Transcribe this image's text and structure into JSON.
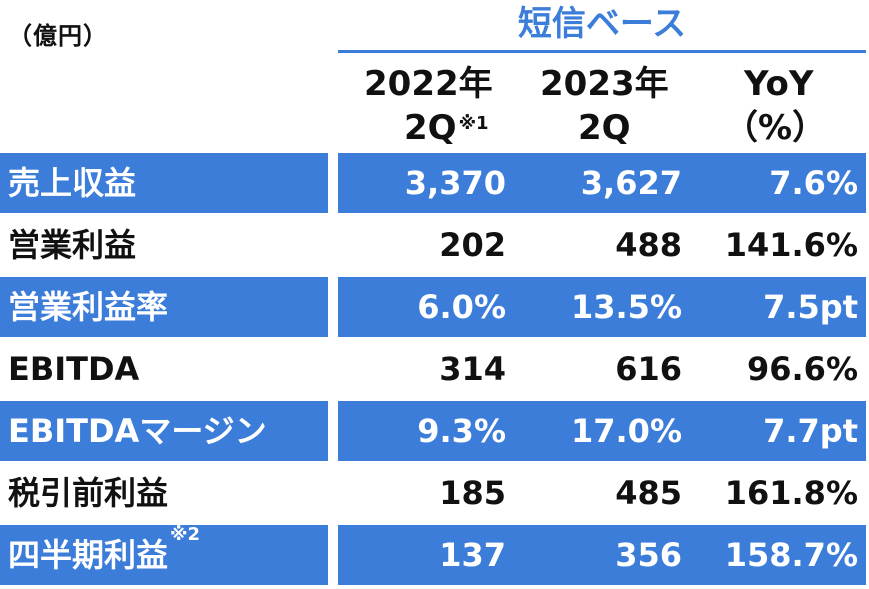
{
  "unit_label": "（億円）",
  "basis_label": "短信ベース",
  "headers": {
    "col1_line1": "2022年",
    "col1_line2": "2Q",
    "col1_note": "※1",
    "col2_line1": "2023年",
    "col2_line2": "2Q",
    "col3_line1": "YoY",
    "col3_line2": "（%）"
  },
  "colors": {
    "accent": "#3b7dd8",
    "text": "#111111",
    "on_accent": "#ffffff"
  },
  "rows": [
    {
      "label": "売上収益",
      "note": "",
      "v2022": "3,370",
      "v2023": "3,627",
      "yoy": "7.6%"
    },
    {
      "label": "営業利益",
      "note": "",
      "v2022": "202",
      "v2023": "488",
      "yoy": "141.6%"
    },
    {
      "label": "営業利益率",
      "note": "",
      "v2022": "6.0%",
      "v2023": "13.5%",
      "yoy": "7.5pt"
    },
    {
      "label": "EBITDA",
      "note": "",
      "v2022": "314",
      "v2023": "616",
      "yoy": "96.6%"
    },
    {
      "label": "EBITDAマージン",
      "note": "",
      "v2022": "9.3%",
      "v2023": "17.0%",
      "yoy": "7.7pt"
    },
    {
      "label": "税引前利益",
      "note": "",
      "v2022": "185",
      "v2023": "485",
      "yoy": "161.8%"
    },
    {
      "label": "四半期利益",
      "note": "※2",
      "v2022": "137",
      "v2023": "356",
      "yoy": "158.7%"
    }
  ]
}
